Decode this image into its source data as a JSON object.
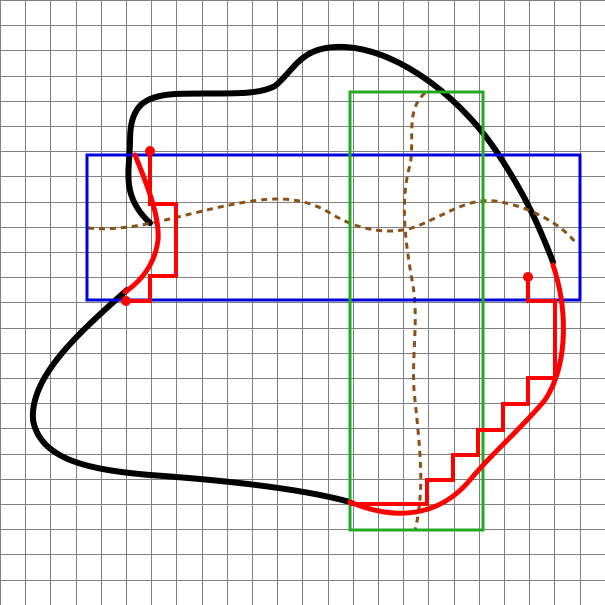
{
  "diagram": {
    "colors": {
      "background": "#ffffff",
      "grid": "#808080",
      "curve": "#000000",
      "highlight": "#ff0000",
      "horizontal_box": "#0000dd",
      "vertical_box": "#22aa22",
      "dotted_path": "#8b5014"
    }
  }
}
